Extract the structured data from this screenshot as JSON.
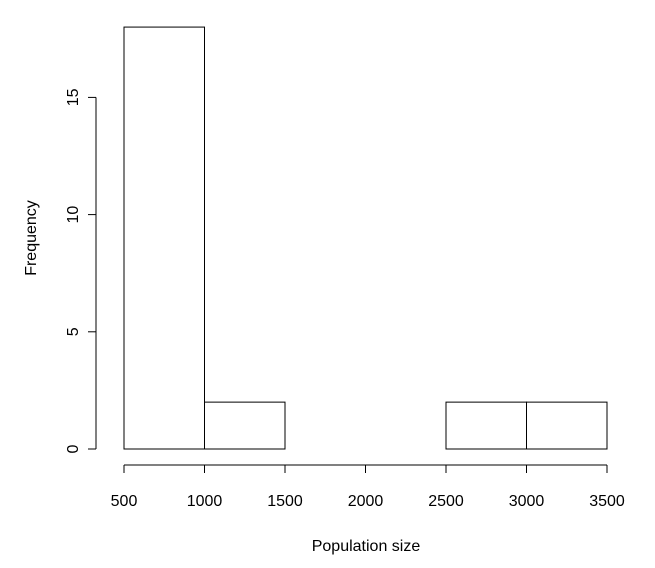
{
  "chart_data": {
    "type": "bar",
    "histogram": true,
    "bins": [
      {
        "start": 500,
        "end": 1000,
        "count": 18
      },
      {
        "start": 1000,
        "end": 1500,
        "count": 2
      },
      {
        "start": 1500,
        "end": 2000,
        "count": 0
      },
      {
        "start": 2000,
        "end": 2500,
        "count": 0
      },
      {
        "start": 2500,
        "end": 3000,
        "count": 2
      },
      {
        "start": 3000,
        "end": 3500,
        "count": 2
      }
    ],
    "title": "",
    "xlabel": "Population size",
    "ylabel": "Frequency",
    "xlim": [
      500,
      3500
    ],
    "ylim": [
      0,
      18
    ],
    "x_ticks": [
      "500",
      "1000",
      "1500",
      "2000",
      "2500",
      "3000",
      "3500"
    ],
    "y_ticks": [
      "0",
      "5",
      "10",
      "15"
    ],
    "grid": false,
    "bar_fill": "#ffffff",
    "bar_stroke": "#000000"
  }
}
